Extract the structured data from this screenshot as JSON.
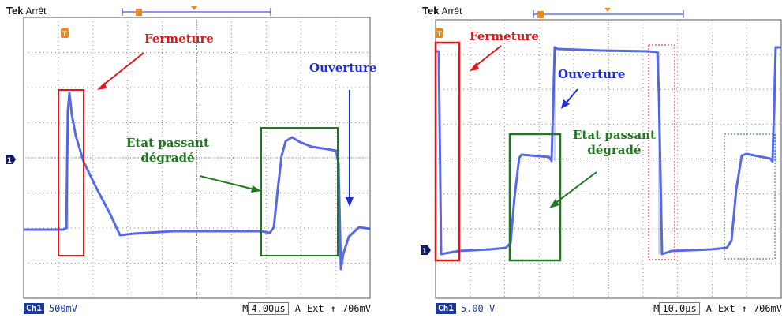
{
  "colors": {
    "trace": "#3a4fe0",
    "grid": "#8a8a8a",
    "red": "#e0161b",
    "green": "#1e7a1e",
    "blue": "#1e2ed1",
    "marker": "#f08a1c",
    "ground": "#0f1a78"
  },
  "scopes": [
    {
      "brand": "Tek",
      "state": "Arrêt",
      "trigger_mark": "T",
      "ground_mark": "1",
      "ch_label": "Ch1",
      "ch_scale": "500mV",
      "time_label": "M",
      "time_scale": "4.00µs",
      "trig_mode": "A",
      "trig_src": "Ext",
      "trig_slope": "↑",
      "trig_level": "706mV",
      "labels": {
        "closing": "Fermeture",
        "opening": "Ouverture",
        "state_line1": "Etat passant",
        "state_line2": "dégradé"
      }
    },
    {
      "brand": "Tek",
      "state": "Arrêt",
      "trigger_mark": "T",
      "ground_mark": "1",
      "ch_label": "Ch1",
      "ch_scale": "5.00 V",
      "time_label": "M",
      "time_scale": "10.0µs",
      "trig_mode": "A",
      "trig_src": "Ext",
      "trig_slope": "↑",
      "trig_level": "706mV",
      "labels": {
        "closing": "Fermeture",
        "opening": "Ouverture",
        "state_line1": "Etat passant",
        "state_line2": "dégradé"
      }
    }
  ]
}
